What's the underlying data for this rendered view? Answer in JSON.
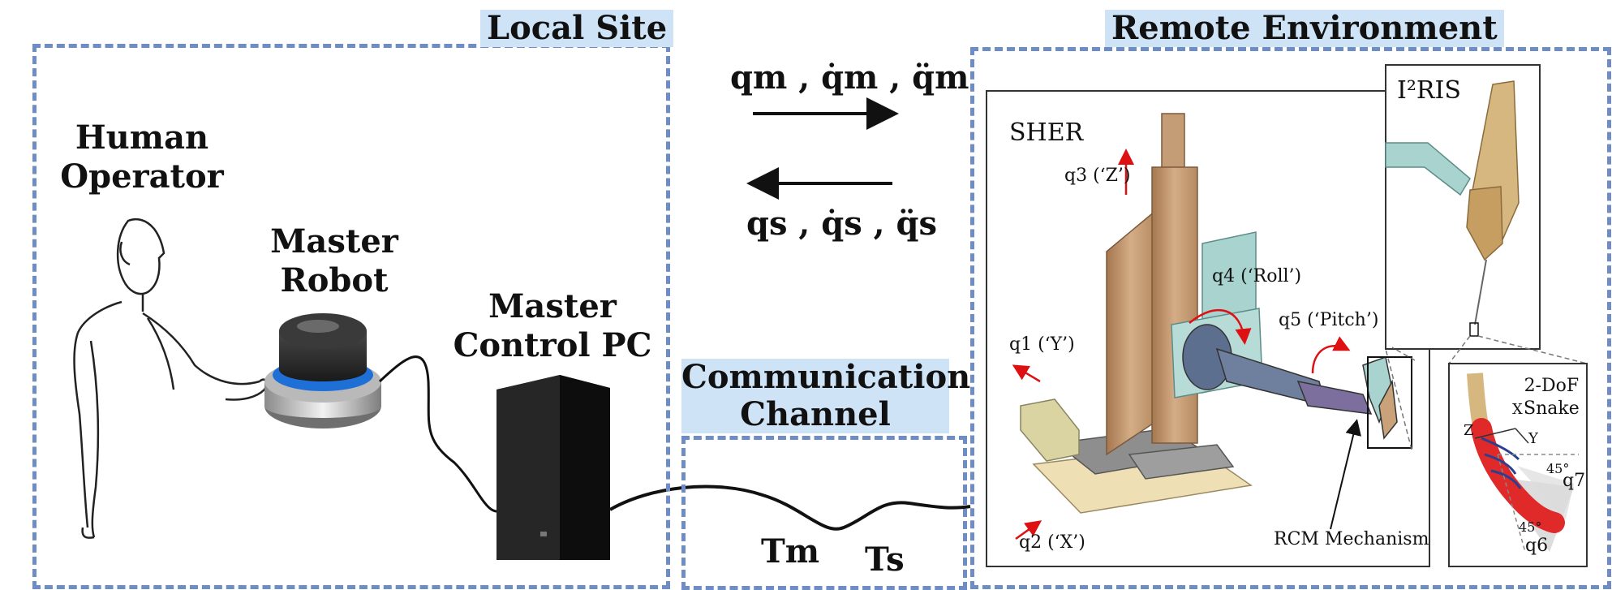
{
  "local_site": {
    "title": "Local Site",
    "human_operator": [
      "Human",
      "Operator"
    ],
    "master_robot": [
      "Master",
      "Robot"
    ],
    "master_pc": [
      "Master",
      "Control PC"
    ]
  },
  "signals": {
    "forward": "qm , q̇m , q̈m",
    "backward": "qs , q̇s , q̈s"
  },
  "channel": {
    "title": [
      "Communication",
      "Channel"
    ],
    "tm": "Tm",
    "ts": "Ts"
  },
  "remote": {
    "title": "Remote Environment",
    "sher": "SHER",
    "q3": "q3 (‘Z’)",
    "q4": "q4 (‘Roll’)",
    "q5": "q5 (‘Pitch’)",
    "q1": "q1 (‘Y’)",
    "q2": "q2 (‘X’)",
    "rcm": "RCM Mechanism",
    "iris": "I²RIS",
    "snake": [
      "2-DoF",
      "Snake"
    ],
    "axis_x": "X",
    "axis_y": "Y",
    "axis_z": "Z",
    "angle_a": "45°",
    "angle_b": "45°",
    "q7": "q7",
    "q6": "q6"
  },
  "colors": {
    "dashed_border": "#6e8dc4",
    "title_bg": "#cfe3f7",
    "robot_tan": "#c9a27a",
    "robot_teal": "#9fc9c6",
    "snake_red": "#e02a2a"
  }
}
